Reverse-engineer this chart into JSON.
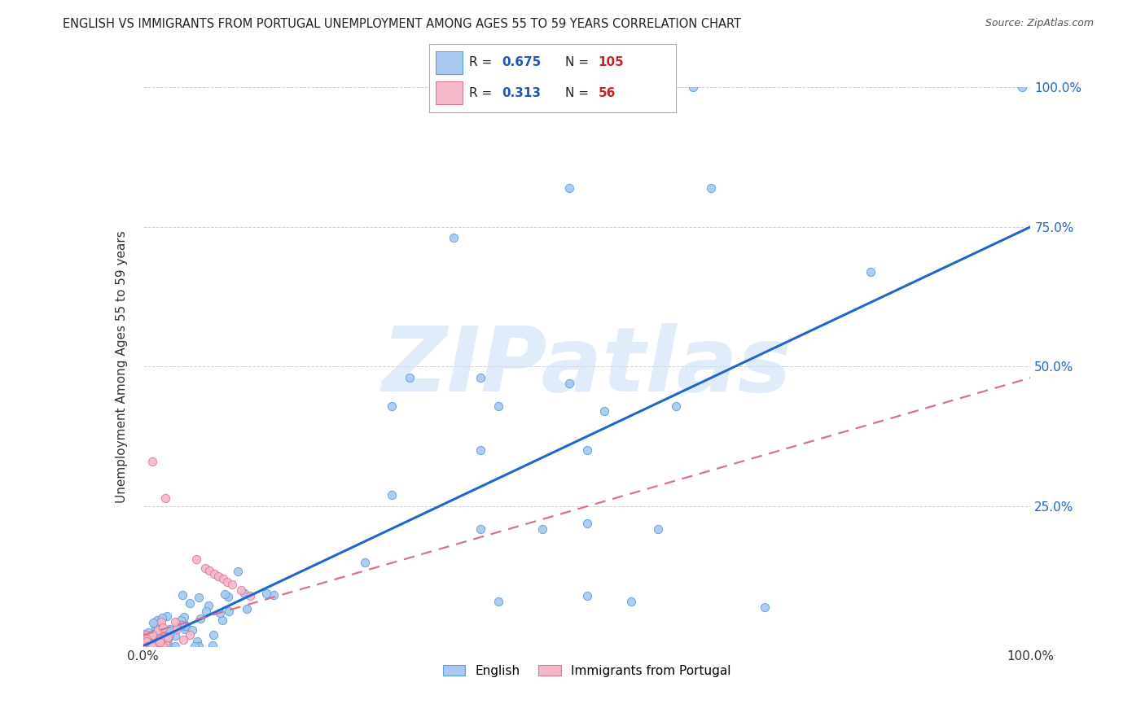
{
  "title": "ENGLISH VS IMMIGRANTS FROM PORTUGAL UNEMPLOYMENT AMONG AGES 55 TO 59 YEARS CORRELATION CHART",
  "source": "Source: ZipAtlas.com",
  "ylabel": "Unemployment Among Ages 55 to 59 years",
  "watermark": "ZIPatlas",
  "xlim": [
    0,
    1.0
  ],
  "ylim": [
    0,
    1.0
  ],
  "english_color": "#a8c8f0",
  "english_edge_color": "#5a9fd4",
  "portugal_color": "#f5b8c8",
  "portugal_edge_color": "#d87898",
  "english_R": 0.675,
  "english_N": 105,
  "portugal_R": 0.313,
  "portugal_N": 56,
  "english_line_color": "#2266cc",
  "portugal_line_color": "#d87090",
  "background_color": "#ffffff",
  "grid_color": "#cccccc",
  "legend_R_color": "#2255bb",
  "legend_N_color": "#cc2222",
  "eng_line_x0": 0.0,
  "eng_line_y0": 0.0,
  "eng_line_x1": 1.0,
  "eng_line_y1": 0.75,
  "por_line_x0": 0.0,
  "por_line_y0": 0.02,
  "por_line_x1": 1.0,
  "por_line_y1": 0.48,
  "right_yticks": [
    0.25,
    0.5,
    0.75,
    1.0
  ],
  "right_yticklabels": [
    "25.0%",
    "50.0%",
    "75.0%",
    "100.0%"
  ]
}
